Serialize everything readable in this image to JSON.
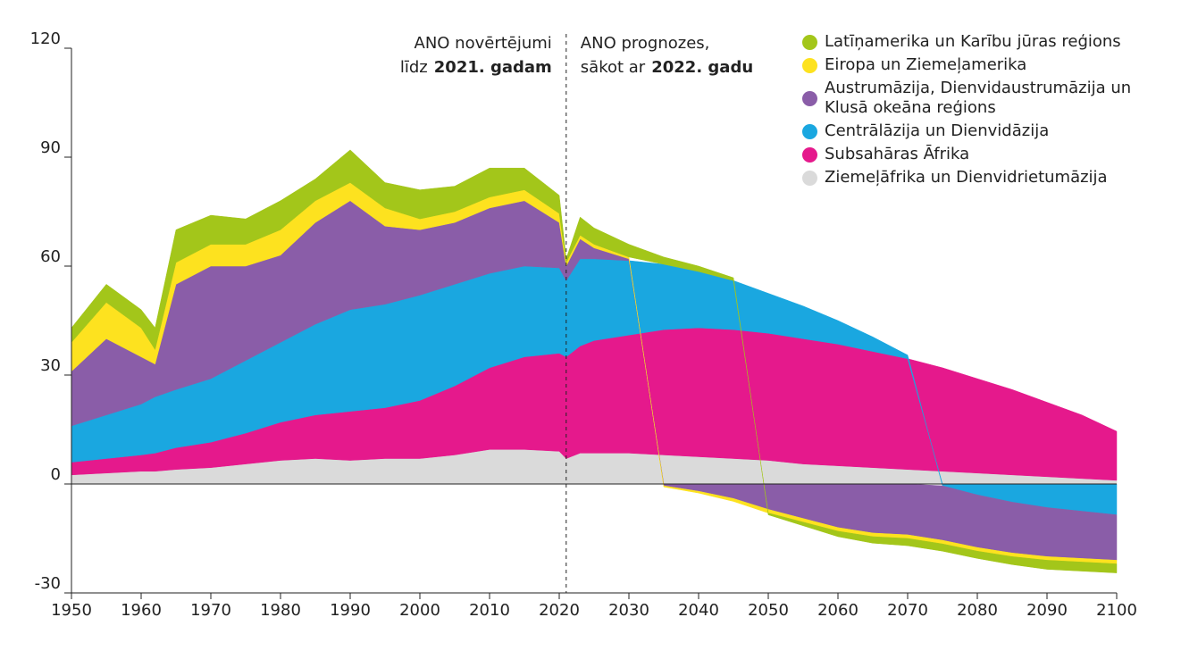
{
  "chart_data": {
    "type": "area",
    "stacked": true,
    "x": [
      1950,
      1955,
      1960,
      1962,
      1965,
      1970,
      1975,
      1980,
      1985,
      1990,
      1995,
      2000,
      2005,
      2010,
      2015,
      2020,
      2021,
      2023,
      2025,
      2030,
      2035,
      2040,
      2045,
      2050,
      2055,
      2060,
      2065,
      2070,
      2075,
      2080,
      2085,
      2090,
      2095,
      2100
    ],
    "series": [
      {
        "name": "Ziemeļāfrika un Dienvidrietumāzija",
        "color": "#dadada",
        "values": [
          2.5,
          3,
          3.5,
          3.5,
          4,
          4.5,
          5.5,
          6.5,
          7,
          6.5,
          7,
          7,
          8,
          9.5,
          9.5,
          9,
          7,
          8.5,
          8.5,
          8.5,
          8,
          7.5,
          7,
          6.5,
          5.5,
          5,
          4.5,
          4,
          3.5,
          3,
          2.5,
          2,
          1.5,
          1
        ]
      },
      {
        "name": "Subsahāras Āfrika",
        "color": "#e5198c",
        "values": [
          3.5,
          4,
          4.5,
          5,
          6,
          7,
          8.5,
          10.5,
          12,
          13.5,
          14,
          16,
          19,
          22.5,
          25.5,
          27,
          28,
          29.5,
          31,
          32.5,
          34.5,
          35.5,
          35.5,
          35,
          34.5,
          33.5,
          32,
          30.5,
          28.5,
          26,
          23.5,
          20.5,
          17.5,
          13.5
        ]
      },
      {
        "name": "Centrālāzija un Dienvidāzija",
        "color": "#1aa7e0",
        "values": [
          10,
          12,
          14,
          15.5,
          16,
          17.5,
          20,
          22,
          25,
          28,
          28.5,
          29,
          28,
          26,
          25,
          23.5,
          21,
          24,
          22.5,
          20.5,
          18,
          15.5,
          13.5,
          11,
          9,
          6.5,
          4,
          1,
          -0.5,
          -3,
          -5,
          -6.5,
          -7.5,
          -8.5
        ]
      },
      {
        "name": "Austrumāzija, Dienvidaustrumāzija un Klusā okeāna reģions",
        "color": "#8a5da8",
        "values": [
          15,
          21,
          13,
          9,
          29,
          31,
          26,
          24,
          28,
          30,
          21.5,
          18,
          17,
          18,
          18,
          12.5,
          4,
          5.5,
          3,
          0.5,
          -0.5,
          -2,
          -4,
          -7,
          -9.5,
          -12,
          -13.5,
          -14,
          -15,
          -14.5,
          -14,
          -13.5,
          -13,
          -12.5
        ]
      },
      {
        "name": "Eiropa un Ziemeļamerika",
        "color": "#fde21f",
        "values": [
          8,
          10,
          8,
          4,
          6,
          6,
          6,
          7,
          6,
          5,
          5,
          3,
          3,
          3,
          3,
          2.5,
          1,
          1,
          1,
          0.5,
          -0.3,
          -0.5,
          -0.8,
          -1,
          -1,
          -1,
          -1,
          -1,
          -1,
          -1,
          -1,
          -1,
          -1,
          -1
        ]
      },
      {
        "name": "Latīņamerika un Karību jūras reģions",
        "color": "#a3c61a",
        "values": [
          4,
          5,
          5,
          6,
          9,
          8,
          7,
          8,
          6,
          9,
          7,
          8,
          7,
          8,
          6,
          5,
          1,
          5,
          4.5,
          3.5,
          2,
          1.5,
          0.8,
          -0.5,
          -1,
          -1.5,
          -1.8,
          -2,
          -2,
          -2,
          -2.2,
          -2.5,
          -2.5,
          -2.5
        ]
      }
    ],
    "xlim": [
      1950,
      2100
    ],
    "xticks": [
      1950,
      1960,
      1970,
      1980,
      1990,
      2000,
      2010,
      2020,
      2030,
      2040,
      2050,
      2060,
      2070,
      2080,
      2090,
      2100
    ],
    "ylim": [
      -30,
      120
    ],
    "yticks": [
      -30,
      0,
      30,
      60,
      90,
      120
    ],
    "divider_x": 2021,
    "annotations": {
      "left_line1": "ANO novērtējumi",
      "left_line2": "līdz",
      "left_line2_bold": "2021. gadam",
      "right_line1": "ANO prognozes,",
      "right_line2": "sākot ar",
      "right_line2_bold": "2022. gadu"
    },
    "legend": "top-right"
  }
}
